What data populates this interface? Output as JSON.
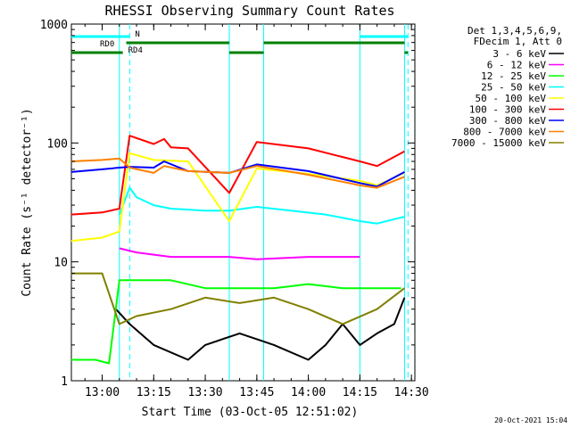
{
  "chart_data": {
    "type": "line",
    "title": "RHESSI Observing Summary Count Rates",
    "xlabel": "Start Time (03-Oct-05 12:51:02)",
    "ylabel": "Count Rate (s⁻¹ detector⁻¹)",
    "y_scale": "log",
    "ylim": [
      1,
      1000
    ],
    "xlim": [
      "12:51:02",
      "14:31:00"
    ],
    "x_ticks": [
      "13:00",
      "13:15",
      "13:30",
      "13:45",
      "14:00",
      "14:15",
      "14:30"
    ],
    "y_ticks": [
      "1",
      "10",
      "100",
      "1000"
    ],
    "legend_position": "right",
    "legend_header": [
      "Det 1,3,4,5,6,9,",
      "FDecim 1, Att 0"
    ],
    "timestamp": "20-Oct-2021 15:04",
    "flags": [
      {
        "label": "N",
        "color": "#00ffff",
        "segments": [
          [
            "12:51",
            "13:08"
          ],
          [
            "14:15",
            "14:29"
          ]
        ]
      },
      {
        "label": "RD0",
        "color": "#008000",
        "segments": [
          [
            "13:07",
            "13:37"
          ],
          [
            "13:47",
            "14:28"
          ]
        ]
      },
      {
        "label": "RD4",
        "color": "#008000",
        "segments": [
          [
            "12:51",
            "13:06"
          ],
          [
            "13:37",
            "13:47"
          ],
          [
            "14:28",
            "14:29"
          ]
        ]
      }
    ],
    "gaps": [
      {
        "label": "",
        "color": "#00ffff",
        "style": "solid",
        "times": [
          "13:05",
          "13:37",
          "13:47",
          "14:15",
          "14:28"
        ]
      },
      {
        "label": "",
        "color": "#00ffff",
        "style": "dashed",
        "times": [
          "13:08",
          "14:29"
        ]
      }
    ],
    "series": [
      {
        "name": "3 - 6 keV",
        "color": "#000000",
        "x": [
          "13:04",
          "13:08",
          "13:15",
          "13:25",
          "13:30",
          "13:40",
          "13:50",
          "14:00",
          "14:05",
          "14:10",
          "14:15",
          "14:20",
          "14:25",
          "14:28"
        ],
        "y": [
          4,
          3,
          2,
          1.5,
          2,
          2.5,
          2,
          1.5,
          2,
          3,
          2,
          2.5,
          3,
          5
        ]
      },
      {
        "name": "6 - 12 keV",
        "color": "#ff00ff",
        "x": [
          "13:05",
          "13:10",
          "13:20",
          "13:30",
          "13:37",
          "13:45",
          "14:00",
          "14:10",
          "14:15"
        ],
        "y": [
          13,
          12,
          11,
          11,
          11,
          10.5,
          11,
          11,
          11
        ]
      },
      {
        "name": "12 - 25 keV",
        "color": "#00ff00",
        "x": [
          "12:51",
          "12:58",
          "13:02",
          "13:05",
          "13:10",
          "13:20",
          "13:30",
          "13:40",
          "13:50",
          "14:00",
          "14:10",
          "14:20",
          "14:27"
        ],
        "y": [
          1.5,
          1.5,
          1.4,
          7,
          7,
          7,
          6,
          6,
          6,
          6.5,
          6,
          6,
          6
        ]
      },
      {
        "name": "25 - 50 keV",
        "color": "#00ffff",
        "x": [
          "13:05",
          "13:08",
          "13:10",
          "13:15",
          "13:20",
          "13:30",
          "13:37",
          "13:45",
          "13:55",
          "14:05",
          "14:15",
          "14:20",
          "14:28"
        ],
        "y": [
          25,
          42,
          35,
          30,
          28,
          27,
          27,
          29,
          27,
          25,
          22,
          21,
          24
        ]
      },
      {
        "name": "50 - 100 keV",
        "color": "#ffff00",
        "x": [
          "12:51",
          "13:00",
          "13:05",
          "13:08",
          "13:15",
          "13:25",
          "13:37",
          "13:45",
          "14:00",
          "14:15",
          "14:20",
          "14:28"
        ],
        "y": [
          15,
          16,
          18,
          82,
          72,
          70,
          22,
          61,
          55,
          48,
          44,
          56
        ]
      },
      {
        "name": "100 - 300 keV",
        "color": "#ff0000",
        "x": [
          "12:51",
          "13:00",
          "13:05",
          "13:08",
          "13:15",
          "13:18",
          "13:20",
          "13:25",
          "13:37",
          "13:45",
          "14:00",
          "14:15",
          "14:20",
          "14:28"
        ],
        "y": [
          25,
          26,
          28,
          115,
          98,
          108,
          92,
          90,
          38,
          102,
          90,
          70,
          64,
          85
        ]
      },
      {
        "name": "300 - 800 keV",
        "color": "#0000ff",
        "x": [
          "12:51",
          "13:00",
          "13:05",
          "13:08",
          "13:15",
          "13:18",
          "13:25",
          "13:37",
          "13:45",
          "14:00",
          "14:15",
          "14:20",
          "14:28"
        ],
        "y": [
          57,
          60,
          62,
          63,
          62,
          70,
          58,
          56,
          66,
          58,
          46,
          43,
          57
        ]
      },
      {
        "name": "800 - 7000 keV",
        "color": "#ff8000",
        "x": [
          "12:51",
          "13:00",
          "13:05",
          "13:08",
          "13:15",
          "13:18",
          "13:25",
          "13:37",
          "13:45",
          "14:00",
          "14:15",
          "14:20",
          "14:28"
        ],
        "y": [
          70,
          72,
          74,
          62,
          56,
          64,
          58,
          56,
          64,
          54,
          44,
          42,
          52
        ]
      },
      {
        "name": "7000 - 15000 keV",
        "color": "#808000",
        "x": [
          "12:51",
          "13:00",
          "13:05",
          "13:10",
          "13:20",
          "13:30",
          "13:40",
          "13:50",
          "14:00",
          "14:10",
          "14:20",
          "14:28"
        ],
        "y": [
          8,
          8,
          3,
          3.5,
          4,
          5,
          4.5,
          5,
          4,
          3,
          4,
          6
        ]
      }
    ]
  }
}
